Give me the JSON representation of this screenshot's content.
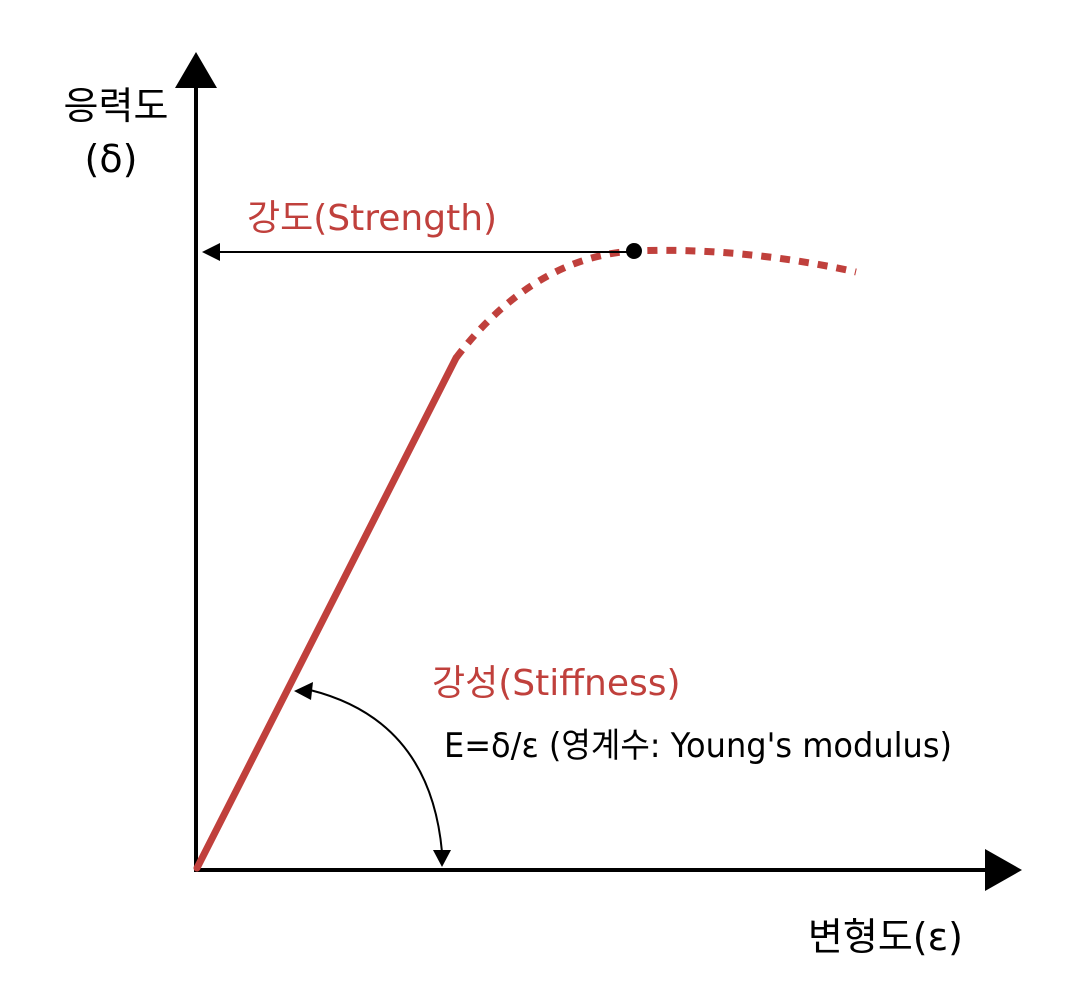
{
  "axes": {
    "y_label_line1": "응력도",
    "y_label_line2": "(δ)",
    "x_label": "변형도(ε)"
  },
  "annotations": {
    "strength_label": "강도(Strength)",
    "stiffness_label": "강성(Stiffness)",
    "modulus_formula": "E=δ/ε (영계수: Young's modulus)"
  },
  "colors": {
    "curve": "#c0403c",
    "axis": "#000000",
    "accent_text": "#c0403c",
    "text": "#000000"
  }
}
